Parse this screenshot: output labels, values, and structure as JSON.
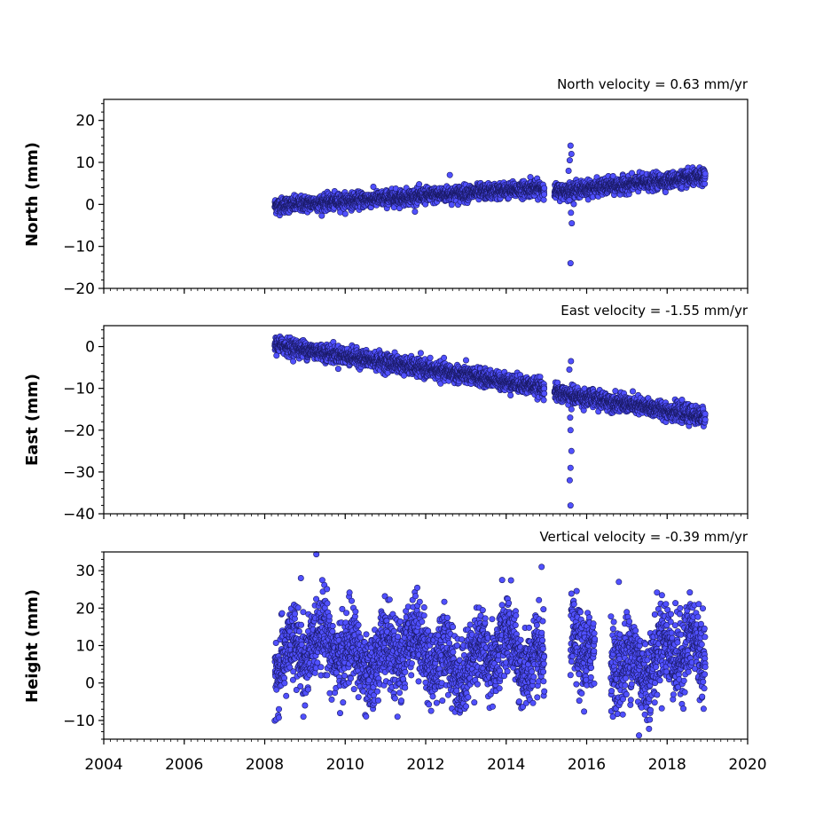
{
  "chart_data": [
    {
      "type": "scatter",
      "title": "North velocity = 0.63 mm/yr",
      "ylabel": "North (mm)",
      "xlim": [
        2004,
        2020
      ],
      "ylim": [
        -20,
        25
      ],
      "yticks": [
        -20,
        -10,
        0,
        10,
        20
      ],
      "xticks": [
        2004,
        2006,
        2008,
        2010,
        2012,
        2014,
        2016,
        2018,
        2020
      ],
      "x_tick_labels_shown": false,
      "grid": false,
      "marker_color": "#5050ff",
      "series": [
        {
          "model": {
            "start": 2008.25,
            "end": 2014.95,
            "intercept": -0.3,
            "slope": 0.63,
            "noise": 0.9
          },
          "model2": {
            "start": 2015.2,
            "end": 2018.95,
            "intercept": 3.0,
            "slope": 0.95,
            "noise": 0.9
          },
          "outliers": [
            [
              2012.6,
              7
            ],
            [
              2014.6,
              6.5
            ],
            [
              2015.6,
              14
            ],
            [
              2015.62,
              12
            ],
            [
              2015.58,
              10.5
            ],
            [
              2015.6,
              -14
            ],
            [
              2015.63,
              -4.5
            ],
            [
              2015.61,
              -2
            ],
            [
              2015.55,
              8
            ],
            [
              2015.57,
              1
            ]
          ]
        }
      ]
    },
    {
      "type": "scatter",
      "title": "East velocity = -1.55 mm/yr",
      "ylabel": "East (mm)",
      "xlim": [
        2004,
        2020
      ],
      "ylim": [
        -40,
        5
      ],
      "yticks": [
        -40,
        -30,
        -20,
        -10,
        0
      ],
      "xticks": [
        2004,
        2006,
        2008,
        2010,
        2012,
        2014,
        2016,
        2018,
        2020
      ],
      "x_tick_labels_shown": false,
      "grid": false,
      "marker_color": "#5050ff",
      "series": [
        {
          "model": {
            "start": 2008.25,
            "end": 2014.95,
            "intercept": 0.5,
            "slope": -1.55,
            "noise": 1.0
          },
          "model2": {
            "start": 2015.2,
            "end": 2018.95,
            "intercept": -11.0,
            "slope": -1.55,
            "noise": 1.0
          },
          "outliers": [
            [
              2015.6,
              -38
            ],
            [
              2015.58,
              -32
            ],
            [
              2015.6,
              -29
            ],
            [
              2015.62,
              -25
            ],
            [
              2015.6,
              -20
            ],
            [
              2015.59,
              -17
            ],
            [
              2015.61,
              -3.5
            ],
            [
              2015.57,
              -5.5
            ],
            [
              2015.62,
              -15
            ]
          ]
        }
      ]
    },
    {
      "type": "scatter",
      "title": "Vertical velocity = -0.39 mm/yr",
      "ylabel": "Height (mm)",
      "xlim": [
        2004,
        2020
      ],
      "ylim": [
        -15,
        35
      ],
      "yticks": [
        -10,
        0,
        10,
        20,
        30
      ],
      "xticks": [
        2004,
        2006,
        2008,
        2010,
        2012,
        2014,
        2016,
        2018,
        2020
      ],
      "x_tick_labels": [
        "2004",
        "2006",
        "2008",
        "2010",
        "2012",
        "2014",
        "2016",
        "2018",
        "2020"
      ],
      "grid": false,
      "marker_color": "#5050ff",
      "series": [
        {
          "model": {
            "start": 2008.25,
            "end": 2014.95,
            "intercept": 9.0,
            "slope": -0.39,
            "noise": 5.0,
            "seasonal": 4.0
          },
          "model2": {
            "start": 2015.6,
            "end": 2018.95,
            "intercept": 8.0,
            "slope": -0.39,
            "noise": 5.5,
            "seasonal": 4.0,
            "gap": [
              2016.2,
              2016.6
            ]
          },
          "outliers": [
            [
              2008.9,
              28
            ],
            [
              2014.88,
              31
            ],
            [
              2013.9,
              27.5
            ],
            [
              2016.8,
              27
            ],
            [
              2017.3,
              -14
            ],
            [
              2009.0,
              -6
            ],
            [
              2011.3,
              -9
            ]
          ]
        }
      ]
    }
  ]
}
